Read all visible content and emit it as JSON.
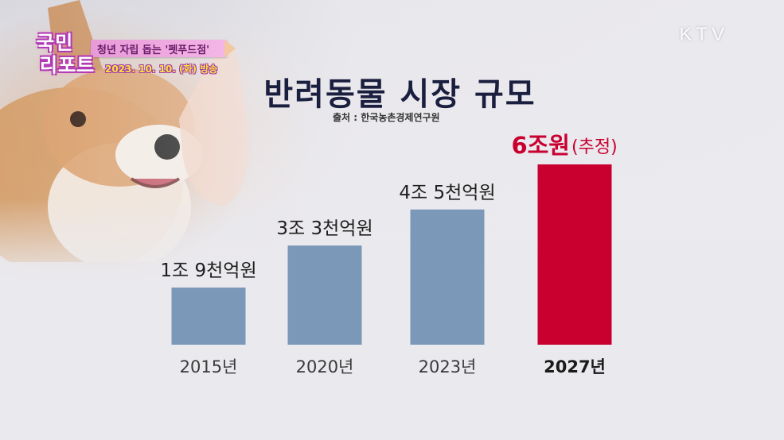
{
  "broadcast": {
    "program_line1": "국민",
    "program_line2": "리포트",
    "subtitle": "청년 자립 돕는 '펫푸드점'",
    "air_date": "2023. 10. 10. (화) 방송",
    "channel_logo": "KTV"
  },
  "chart_data": {
    "type": "bar",
    "title": "반려동물 시장 규모",
    "source": "출처 : 한국농촌경제연구원",
    "unit": "원",
    "categories": [
      "2015년",
      "2020년",
      "2023년",
      "2027년"
    ],
    "values": [
      1.9,
      3.3,
      4.5,
      6.0
    ],
    "value_labels": [
      "1조 9천억원",
      "3조 3천억원",
      "4조 5천억원",
      "6조원"
    ],
    "highlight": {
      "index": 3,
      "label_main": "6조원",
      "label_note": "(추정)",
      "color": "#c9002f"
    },
    "bar_color": "#7b98b8",
    "ylim": [
      0,
      6.0
    ],
    "grid": false,
    "legend": "none"
  }
}
